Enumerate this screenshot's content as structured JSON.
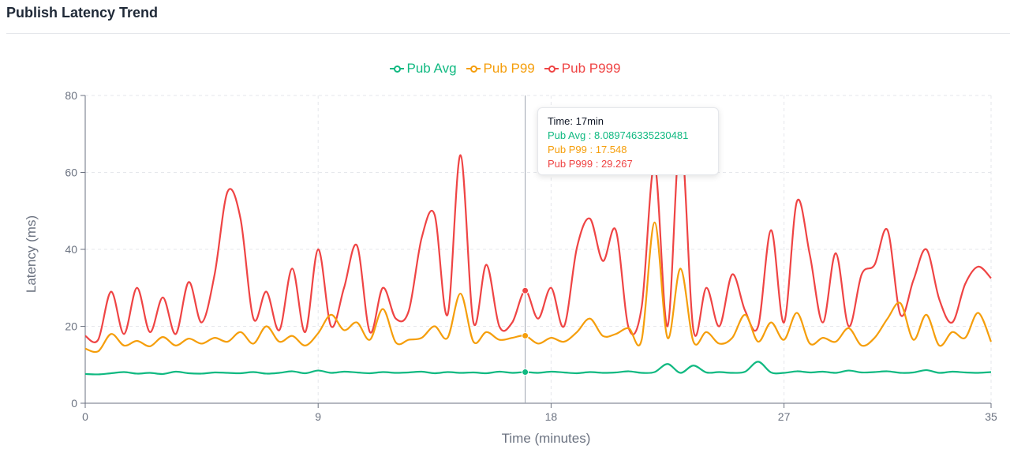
{
  "panel": {
    "title": "Publish Latency Trend"
  },
  "chart_data": {
    "type": "line",
    "xlabel": "Time (minutes)",
    "ylabel": "Latency (ms)",
    "xlim": [
      0,
      35
    ],
    "ylim": [
      0,
      80
    ],
    "xticks": [
      "0",
      "9",
      "18",
      "27",
      "35"
    ],
    "yticks": [
      "0",
      "20",
      "40",
      "60",
      "80"
    ],
    "grid": true,
    "legend_position": "top-center",
    "x": [
      0.0,
      0.5,
      1.0,
      1.5,
      2.0,
      2.5,
      3.0,
      3.5,
      4.0,
      4.5,
      5.0,
      5.5,
      6.0,
      6.5,
      7.0,
      7.5,
      8.0,
      8.5,
      9.0,
      9.5,
      10.0,
      10.5,
      11.0,
      11.5,
      12.0,
      12.5,
      13.0,
      13.5,
      14.0,
      14.5,
      15.0,
      15.5,
      16.0,
      16.5,
      17.0,
      17.5,
      18.0,
      18.5,
      19.0,
      19.5,
      20.0,
      20.5,
      21.0,
      21.5,
      22.0,
      22.5,
      23.0,
      23.5,
      24.0,
      24.5,
      25.0,
      25.5,
      26.0,
      26.5,
      27.0,
      27.5,
      28.0,
      28.5,
      29.0,
      29.5,
      30.0,
      30.5,
      31.0,
      31.5,
      32.0,
      32.5,
      33.0,
      33.5,
      34.0,
      34.5,
      35.0
    ],
    "series": [
      {
        "name": "Pub Avg",
        "color": "#10b981",
        "values": [
          7.6,
          7.5,
          7.8,
          8.1,
          7.7,
          7.9,
          7.6,
          8.2,
          7.8,
          7.7,
          8.0,
          7.9,
          7.8,
          8.1,
          7.7,
          7.9,
          8.3,
          7.8,
          8.5,
          7.9,
          8.2,
          8.0,
          7.8,
          8.1,
          7.9,
          8.0,
          8.2,
          7.8,
          8.1,
          7.9,
          8.0,
          7.8,
          8.2,
          7.9,
          8.09,
          7.9,
          8.2,
          8.0,
          7.8,
          8.1,
          7.9,
          8.0,
          8.3,
          7.9,
          8.1,
          10.2,
          7.9,
          9.8,
          8.0,
          8.1,
          7.9,
          8.2,
          10.8,
          8.0,
          7.9,
          8.3,
          8.0,
          8.2,
          7.9,
          8.5,
          8.0,
          8.1,
          8.3,
          7.9,
          8.0,
          8.6,
          7.9,
          8.2,
          8.0,
          7.9,
          8.1
        ]
      },
      {
        "name": "Pub P99",
        "color": "#f59e0b",
        "values": [
          14.2,
          13.5,
          18.0,
          15.0,
          16.2,
          14.8,
          17.2,
          15.0,
          16.8,
          15.5,
          17.0,
          16.0,
          18.5,
          15.5,
          20.0,
          16.0,
          17.5,
          15.0,
          18.2,
          23.0,
          19.0,
          21.0,
          16.5,
          24.5,
          15.8,
          16.5,
          17.0,
          20.0,
          17.0,
          28.5,
          16.0,
          18.5,
          16.5,
          17.0,
          17.55,
          15.5,
          17.0,
          16.0,
          18.5,
          22.0,
          17.5,
          18.0,
          19.5,
          16.5,
          47.0,
          17.0,
          35.0,
          16.0,
          18.5,
          15.5,
          17.0,
          23.0,
          16.0,
          21.0,
          16.5,
          23.5,
          15.5,
          17.0,
          16.0,
          19.5,
          15.0,
          17.0,
          22.0,
          26.0,
          16.5,
          23.0,
          15.0,
          18.5,
          17.0,
          23.5,
          16.0
        ]
      },
      {
        "name": "Pub P999",
        "color": "#ef4444",
        "values": [
          17.5,
          16.5,
          29.0,
          18.0,
          30.0,
          18.5,
          27.5,
          18.0,
          31.5,
          21.0,
          33.5,
          55.0,
          48.0,
          22.0,
          29.0,
          19.0,
          35.0,
          18.5,
          40.0,
          20.0,
          30.0,
          41.0,
          18.5,
          30.0,
          22.0,
          24.0,
          43.0,
          49.0,
          23.0,
          64.5,
          21.0,
          36.0,
          20.0,
          21.0,
          29.27,
          22.0,
          30.0,
          20.0,
          40.5,
          48.0,
          37.0,
          45.0,
          19.5,
          25.0,
          62.0,
          20.0,
          70.0,
          19.0,
          30.0,
          20.0,
          33.5,
          24.0,
          20.0,
          45.0,
          21.0,
          52.5,
          38.5,
          21.0,
          39.0,
          20.0,
          33.5,
          36.0,
          45.0,
          23.0,
          32.0,
          40.0,
          27.0,
          21.0,
          31.0,
          35.5,
          32.5
        ]
      }
    ],
    "tooltip": {
      "time": "Time: 17min",
      "rows": [
        {
          "text": "Pub Avg : 8.089746335230481",
          "color": "#10b981"
        },
        {
          "text": "Pub P99 : 17.548",
          "color": "#f59e0b"
        },
        {
          "text": "Pub P999 : 29.267",
          "color": "#ef4444"
        }
      ],
      "x_value": 17,
      "y_values": [
        8.09,
        17.55,
        29.27
      ]
    }
  }
}
